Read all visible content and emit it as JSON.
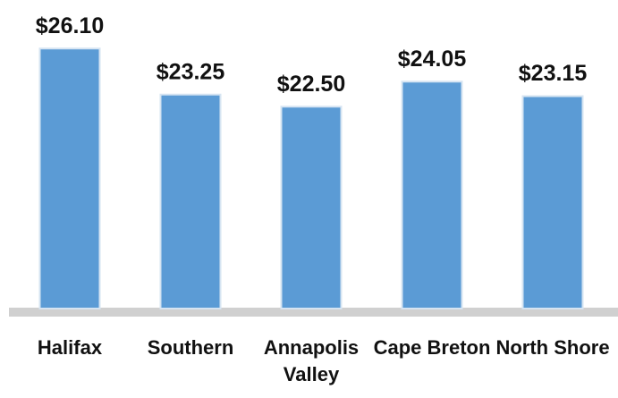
{
  "chart_data": {
    "type": "bar",
    "categories": [
      "Halifax",
      "Southern",
      "Annapolis Valley",
      "Cape Breton",
      "North Shore"
    ],
    "values": [
      26.1,
      23.25,
      22.5,
      24.05,
      23.15
    ],
    "value_labels": [
      "$26.10",
      "$23.25",
      "$22.50",
      "$24.05",
      "$23.15"
    ],
    "color": "#5b9bd5",
    "ylim": [
      10,
      27
    ]
  }
}
